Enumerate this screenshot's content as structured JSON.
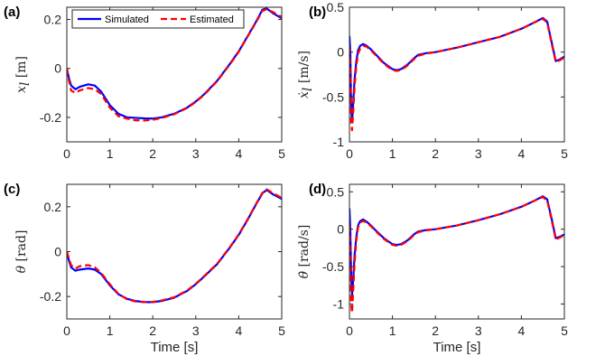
{
  "colors": {
    "simulated": "#0000ff",
    "estimated": "#ff0000",
    "axis": "#262626"
  },
  "legend": {
    "simulated": "Simulated",
    "estimated": "Estimated",
    "placement": "top (panel a)"
  },
  "chart_data": [
    {
      "panel": "(a)",
      "type": "line",
      "xlabel": "",
      "ylabel": {
        "symbol": "x",
        "sub": "l",
        "unit": "[m]"
      },
      "xlim": [
        0,
        5
      ],
      "ylim": [
        -0.3,
        0.25
      ],
      "xticks": [
        0,
        1,
        2,
        3,
        4,
        5
      ],
      "yticks": [
        0.2,
        0,
        -0.2
      ],
      "ytick_labels": [
        "0.2",
        "0",
        "-0.2"
      ],
      "grid": false,
      "series": [
        {
          "name": "Simulated",
          "style": "solid",
          "x": [
            0,
            0.05,
            0.1,
            0.2,
            0.3,
            0.5,
            0.65,
            0.8,
            1.0,
            1.2,
            1.4,
            1.6,
            1.8,
            2.0,
            2.2,
            2.5,
            2.8,
            3.0,
            3.2,
            3.5,
            3.8,
            4.0,
            4.2,
            4.4,
            4.55,
            4.65,
            4.8,
            5.0
          ],
          "y": [
            0,
            -0.04,
            -0.07,
            -0.085,
            -0.075,
            -0.065,
            -0.07,
            -0.095,
            -0.15,
            -0.185,
            -0.2,
            -0.202,
            -0.204,
            -0.205,
            -0.2,
            -0.185,
            -0.16,
            -0.135,
            -0.105,
            -0.05,
            0.02,
            0.07,
            0.13,
            0.19,
            0.24,
            0.245,
            0.225,
            0.205
          ]
        },
        {
          "name": "Estimated",
          "style": "dashed",
          "x": [
            0,
            0.05,
            0.1,
            0.2,
            0.3,
            0.5,
            0.65,
            0.8,
            1.0,
            1.2,
            1.4,
            1.6,
            1.8,
            2.0,
            2.2,
            2.5,
            2.8,
            3.0,
            3.2,
            3.5,
            3.8,
            4.0,
            4.2,
            4.4,
            4.55,
            4.65,
            4.8,
            5.0
          ],
          "y": [
            0,
            -0.05,
            -0.09,
            -0.1,
            -0.09,
            -0.08,
            -0.085,
            -0.105,
            -0.16,
            -0.195,
            -0.205,
            -0.212,
            -0.213,
            -0.21,
            -0.203,
            -0.187,
            -0.162,
            -0.137,
            -0.107,
            -0.052,
            0.018,
            0.068,
            0.128,
            0.188,
            0.235,
            0.242,
            0.23,
            0.21
          ]
        }
      ]
    },
    {
      "panel": "(b)",
      "type": "line",
      "xlabel": "",
      "ylabel": {
        "symbol": "ẋ",
        "sub": "l",
        "unit": "[m/s]"
      },
      "xlim": [
        0,
        5
      ],
      "ylim": [
        -1,
        0.5
      ],
      "xticks": [
        0,
        1,
        2,
        3,
        4,
        5
      ],
      "yticks": [
        0.5,
        0,
        -0.5,
        -1
      ],
      "ytick_labels": [
        "0.5",
        "0",
        "-0.5",
        "-1"
      ],
      "grid": false,
      "series": [
        {
          "name": "Simulated",
          "style": "solid",
          "x": [
            0,
            0.02,
            0.04,
            0.06,
            0.09,
            0.12,
            0.16,
            0.2,
            0.25,
            0.32,
            0.4,
            0.5,
            0.6,
            0.8,
            1.0,
            1.1,
            1.2,
            1.35,
            1.5,
            1.6,
            1.8,
            2.0,
            2.5,
            3.0,
            3.5,
            4.0,
            4.3,
            4.5,
            4.6,
            4.7,
            4.8,
            4.9,
            5.0
          ],
          "y": [
            0.18,
            0.0,
            -0.6,
            -0.78,
            -0.55,
            -0.3,
            -0.1,
            0.02,
            0.07,
            0.09,
            0.07,
            0.03,
            -0.02,
            -0.12,
            -0.19,
            -0.2,
            -0.19,
            -0.14,
            -0.07,
            -0.03,
            -0.01,
            0.0,
            0.05,
            0.11,
            0.17,
            0.26,
            0.33,
            0.38,
            0.34,
            0.12,
            -0.1,
            -0.08,
            -0.05
          ]
        },
        {
          "name": "Estimated",
          "style": "dashed",
          "x": [
            0,
            0.02,
            0.04,
            0.06,
            0.09,
            0.12,
            0.16,
            0.2,
            0.25,
            0.32,
            0.4,
            0.5,
            0.6,
            0.8,
            1.0,
            1.1,
            1.2,
            1.35,
            1.5,
            1.6,
            1.8,
            2.0,
            2.5,
            3.0,
            3.5,
            4.0,
            4.3,
            4.5,
            4.6,
            4.7,
            4.8,
            4.9,
            5.0
          ],
          "y": [
            0.05,
            -0.2,
            -0.8,
            -0.87,
            -0.65,
            -0.38,
            -0.15,
            -0.02,
            0.04,
            0.07,
            0.06,
            0.02,
            -0.03,
            -0.13,
            -0.2,
            -0.21,
            -0.2,
            -0.15,
            -0.08,
            -0.04,
            -0.015,
            0.0,
            0.05,
            0.11,
            0.17,
            0.26,
            0.33,
            0.37,
            0.33,
            0.1,
            -0.11,
            -0.09,
            -0.06
          ]
        }
      ]
    },
    {
      "panel": "(c)",
      "type": "line",
      "xlabel": "Time [s]",
      "ylabel": {
        "symbol": "θ",
        "sub": "",
        "unit": "[rad]"
      },
      "xlim": [
        0,
        5
      ],
      "ylim": [
        -0.3,
        0.3
      ],
      "xticks": [
        0,
        1,
        2,
        3,
        4,
        5
      ],
      "yticks": [
        0.2,
        0,
        -0.2
      ],
      "ytick_labels": [
        "0.2",
        "0",
        "-0.2"
      ],
      "grid": false,
      "series": [
        {
          "name": "Simulated",
          "style": "solid",
          "x": [
            0,
            0.05,
            0.1,
            0.2,
            0.3,
            0.5,
            0.65,
            0.8,
            1.0,
            1.2,
            1.4,
            1.6,
            1.8,
            2.0,
            2.2,
            2.5,
            2.8,
            3.0,
            3.2,
            3.5,
            3.8,
            4.0,
            4.2,
            4.4,
            4.55,
            4.65,
            4.8,
            5.0
          ],
          "y": [
            0,
            -0.04,
            -0.07,
            -0.085,
            -0.08,
            -0.075,
            -0.08,
            -0.1,
            -0.15,
            -0.19,
            -0.21,
            -0.22,
            -0.225,
            -0.225,
            -0.22,
            -0.205,
            -0.175,
            -0.145,
            -0.11,
            -0.055,
            0.02,
            0.075,
            0.14,
            0.21,
            0.26,
            0.275,
            0.255,
            0.235
          ]
        },
        {
          "name": "Estimated",
          "style": "dashed",
          "x": [
            0,
            0.05,
            0.1,
            0.2,
            0.3,
            0.5,
            0.65,
            0.8,
            1.0,
            1.2,
            1.4,
            1.6,
            1.8,
            2.0,
            2.2,
            2.5,
            2.8,
            3.0,
            3.2,
            3.5,
            3.8,
            4.0,
            4.2,
            4.4,
            4.55,
            4.65,
            4.8,
            5.0
          ],
          "y": [
            0,
            -0.03,
            -0.06,
            -0.075,
            -0.065,
            -0.06,
            -0.07,
            -0.095,
            -0.145,
            -0.188,
            -0.212,
            -0.222,
            -0.225,
            -0.224,
            -0.218,
            -0.203,
            -0.173,
            -0.143,
            -0.108,
            -0.053,
            0.022,
            0.077,
            0.142,
            0.212,
            0.262,
            0.278,
            0.26,
            0.24
          ]
        }
      ]
    },
    {
      "panel": "(d)",
      "type": "line",
      "xlabel": "Time [s]",
      "ylabel": {
        "symbol": "θ̇",
        "sub": "",
        "unit": "[rad/s]"
      },
      "xlim": [
        0,
        5
      ],
      "ylim": [
        -1.2,
        0.6
      ],
      "xticks": [
        0,
        1,
        2,
        3,
        4,
        5
      ],
      "yticks": [
        0.5,
        0,
        -0.5,
        -1
      ],
      "ytick_labels": [
        "0.5",
        "0",
        "-0.5",
        "-1"
      ],
      "grid": false,
      "series": [
        {
          "name": "Simulated",
          "style": "solid",
          "x": [
            0,
            0.02,
            0.04,
            0.06,
            0.09,
            0.12,
            0.16,
            0.2,
            0.25,
            0.32,
            0.4,
            0.5,
            0.6,
            0.8,
            1.0,
            1.1,
            1.2,
            1.35,
            1.5,
            1.6,
            1.8,
            2.0,
            2.5,
            3.0,
            3.5,
            4.0,
            4.3,
            4.5,
            4.6,
            4.7,
            4.8,
            4.9,
            5.0
          ],
          "y": [
            0.28,
            0.0,
            -0.6,
            -0.88,
            -0.65,
            -0.35,
            -0.1,
            0.05,
            0.11,
            0.13,
            0.1,
            0.05,
            -0.01,
            -0.12,
            -0.2,
            -0.21,
            -0.2,
            -0.15,
            -0.07,
            -0.03,
            -0.01,
            0.0,
            0.05,
            0.12,
            0.2,
            0.3,
            0.38,
            0.44,
            0.4,
            0.15,
            -0.12,
            -0.1,
            -0.07
          ]
        },
        {
          "name": "Estimated",
          "style": "dashed",
          "x": [
            0,
            0.02,
            0.04,
            0.06,
            0.09,
            0.12,
            0.16,
            0.2,
            0.25,
            0.32,
            0.4,
            0.5,
            0.6,
            0.8,
            1.0,
            1.1,
            1.2,
            1.35,
            1.5,
            1.6,
            1.8,
            2.0,
            2.5,
            3.0,
            3.5,
            4.0,
            4.3,
            4.5,
            4.6,
            4.7,
            4.8,
            4.9,
            5.0
          ],
          "y": [
            0.05,
            -0.3,
            -1.0,
            -1.12,
            -0.8,
            -0.45,
            -0.15,
            0.02,
            0.09,
            0.11,
            0.09,
            0.04,
            -0.02,
            -0.13,
            -0.21,
            -0.22,
            -0.21,
            -0.16,
            -0.08,
            -0.04,
            -0.015,
            0.0,
            0.05,
            0.12,
            0.2,
            0.3,
            0.38,
            0.43,
            0.38,
            0.13,
            -0.14,
            -0.11,
            -0.08
          ]
        }
      ]
    }
  ]
}
